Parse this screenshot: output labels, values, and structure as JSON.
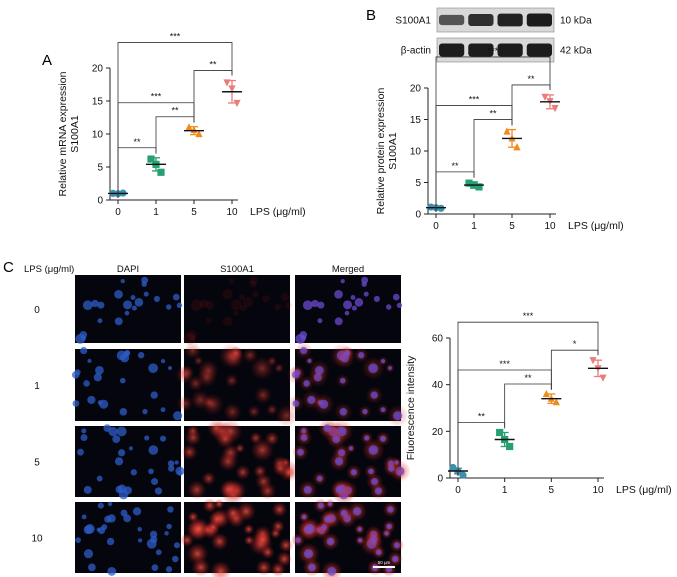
{
  "panel_labels": [
    "A",
    "B",
    "C"
  ],
  "colors": {
    "g0": "#3d8fb0",
    "g1": "#25a070",
    "g5": "#f08a1e",
    "g10": "#ea7c7c",
    "band": "#1c1c1c",
    "blot_bg": "#d9d9d9",
    "dapi": "#2e5cc8",
    "s100": "#e02a2a",
    "merged": "#a040c0"
  },
  "blot": {
    "rows": [
      {
        "name": "S100A1",
        "size": "10 kDa",
        "intensity": [
          0.55,
          0.85,
          0.95,
          1.0
        ]
      },
      {
        "name": "β-actin",
        "size": "42 kDa",
        "intensity": [
          1.0,
          1.0,
          1.0,
          1.0
        ]
      }
    ]
  },
  "micro": {
    "corner_label": "LPS (μg/ml)",
    "columns": [
      "DAPI",
      "S100A1",
      "Merged"
    ],
    "rows": [
      "0",
      "1",
      "5",
      "10"
    ],
    "scale_bar": "50 μm",
    "signal": {
      "dapi": [
        0.55,
        0.6,
        0.6,
        0.6
      ],
      "s100": [
        0.15,
        0.6,
        0.85,
        1.0
      ]
    }
  },
  "chart_data": [
    {
      "type": "scatter",
      "panel": "A",
      "ylabel": [
        "Relative mRNA expression",
        "S100A1"
      ],
      "categories": [
        "0",
        "1",
        "5",
        "10"
      ],
      "x_title": "LPS (μg/ml)",
      "ylim": [
        0,
        20
      ],
      "yticks": [
        0,
        5,
        10,
        15,
        20
      ],
      "groups": [
        {
          "label": "0",
          "mean": 1.0,
          "sd": 0.15,
          "points": [
            1.0,
            0.95,
            1.05
          ],
          "marker": "circle",
          "color": "#3d8fb0"
        },
        {
          "label": "1",
          "mean": 5.4,
          "sd": 1.0,
          "points": [
            6.2,
            5.4,
            4.2
          ],
          "marker": "square",
          "color": "#25a070"
        },
        {
          "label": "5",
          "mean": 10.5,
          "sd": 0.6,
          "points": [
            11.0,
            10.6,
            10.0
          ],
          "marker": "triangle-up",
          "color": "#f08a1e"
        },
        {
          "label": "10",
          "mean": 16.4,
          "sd": 1.7,
          "points": [
            17.8,
            16.9,
            14.7
          ],
          "marker": "triangle-down",
          "color": "#ea7c7c"
        }
      ],
      "significance": [
        {
          "from": 0,
          "to": 1,
          "label": "**"
        },
        {
          "from": 1,
          "to": 2,
          "label": "**"
        },
        {
          "from": 2,
          "to": 3,
          "label": "**"
        },
        {
          "from": 0,
          "to": 2,
          "label": "***"
        },
        {
          "from": 0,
          "to": 3,
          "label": "***"
        }
      ]
    },
    {
      "type": "scatter",
      "panel": "B",
      "ylabel": [
        "Relative protein expression",
        "S100A1"
      ],
      "categories": [
        "0",
        "1",
        "5",
        "10"
      ],
      "x_title": "LPS (μg/ml)",
      "ylim": [
        0,
        20
      ],
      "yticks": [
        0,
        5,
        10,
        15,
        20
      ],
      "groups": [
        {
          "label": "0",
          "mean": 1.0,
          "sd": 0.2,
          "points": [
            1.1,
            1.0,
            0.9
          ],
          "marker": "circle",
          "color": "#3d8fb0"
        },
        {
          "label": "1",
          "mean": 4.6,
          "sd": 0.5,
          "points": [
            4.9,
            4.6,
            4.3
          ],
          "marker": "square",
          "color": "#25a070"
        },
        {
          "label": "5",
          "mean": 12.0,
          "sd": 1.4,
          "points": [
            13.1,
            12.0,
            10.6
          ],
          "marker": "triangle-up",
          "color": "#f08a1e"
        },
        {
          "label": "10",
          "mean": 17.8,
          "sd": 1.1,
          "points": [
            18.6,
            17.9,
            16.8
          ],
          "marker": "triangle-down",
          "color": "#ea7c7c"
        }
      ],
      "significance": [
        {
          "from": 0,
          "to": 1,
          "label": "**"
        },
        {
          "from": 1,
          "to": 2,
          "label": "**"
        },
        {
          "from": 2,
          "to": 3,
          "label": "**"
        },
        {
          "from": 0,
          "to": 2,
          "label": "***"
        },
        {
          "from": 0,
          "to": 3,
          "label": "***"
        }
      ]
    },
    {
      "type": "scatter",
      "panel": "C",
      "ylabel": [
        "Fluorescence intensity"
      ],
      "categories": [
        "0",
        "1",
        "5",
        "10"
      ],
      "x_title": "LPS (μg/ml)",
      "ylim": [
        0,
        60
      ],
      "yticks": [
        0,
        20,
        40,
        60
      ],
      "groups": [
        {
          "label": "0",
          "mean": 3.0,
          "sd": 1.2,
          "points": [
            4.5,
            2.8,
            1.2
          ],
          "marker": "circle",
          "color": "#3d8fb0"
        },
        {
          "label": "1",
          "mean": 16.5,
          "sd": 3.0,
          "points": [
            19.5,
            16.5,
            13.5
          ],
          "marker": "square",
          "color": "#25a070"
        },
        {
          "label": "5",
          "mean": 34.0,
          "sd": 2.0,
          "points": [
            36.0,
            34.0,
            32.5
          ],
          "marker": "triangle-up",
          "color": "#f08a1e"
        },
        {
          "label": "10",
          "mean": 47.0,
          "sd": 3.5,
          "points": [
            50.5,
            47.0,
            43.0
          ],
          "marker": "triangle-down",
          "color": "#ea7c7c"
        }
      ],
      "significance": [
        {
          "from": 0,
          "to": 1,
          "label": "**"
        },
        {
          "from": 1,
          "to": 2,
          "label": "**"
        },
        {
          "from": 2,
          "to": 3,
          "label": "*"
        },
        {
          "from": 0,
          "to": 2,
          "label": "***"
        },
        {
          "from": 0,
          "to": 3,
          "label": "***"
        }
      ]
    }
  ]
}
